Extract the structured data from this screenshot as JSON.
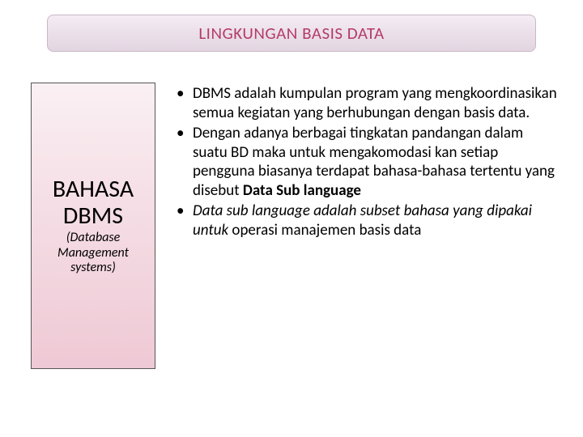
{
  "header": {
    "title": "LINGKUNGAN BASIS DATA"
  },
  "leftBox": {
    "title_line1": "BAHASA",
    "title_line2": "DBMS",
    "subtitle_line1": "(Database",
    "subtitle_line2": "Management",
    "subtitle_line3": "systems)"
  },
  "bullets": {
    "item1": "DBMS adalah kumpulan  program yang mengkoordinasikan semua kegiatan yang berhubungan dengan basis data.",
    "item2_part1": "Dengan adanya berbagai tingkatan pandangan dalam suatu BD maka untuk mengakomodasi kan setiap pengguna biasanya terdapat bahasa-bahasa tertentu yang disebut ",
    "item2_bold": "Data Sub language",
    "item3_italic": " Data sub language adalah subset bahasa yang dipakai  untuk ",
    "item3_plain": "operasi manajemen basis data"
  },
  "colors": {
    "header_text": "#b33b6b",
    "header_bg_top": "#f5ecf5",
    "header_bg_bottom": "#e2d5e1",
    "left_bg_top": "#faf0f3",
    "left_bg_bottom": "#efc9d5",
    "text": "#000000",
    "background": "#ffffff"
  },
  "typography": {
    "header_fontsize": 21,
    "left_title_fontsize": 30,
    "left_subtitle_fontsize": 16,
    "bullet_fontsize": 19
  }
}
